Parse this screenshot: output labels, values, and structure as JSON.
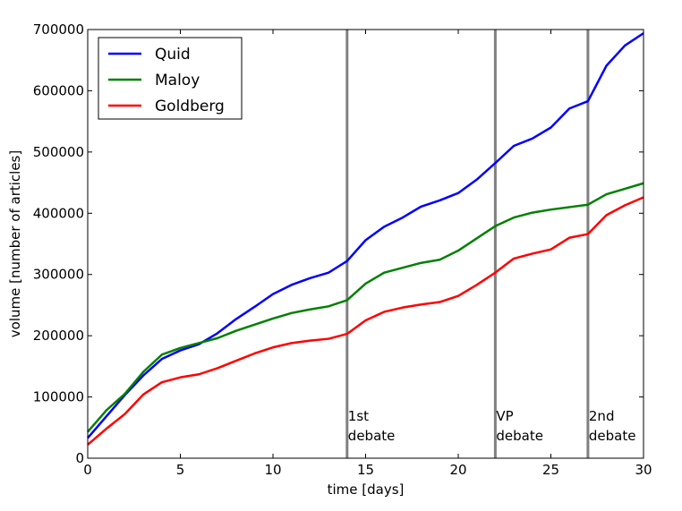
{
  "chart_data": {
    "type": "line",
    "title": "",
    "xlabel": "time [days]",
    "ylabel": "volume [number of articles]",
    "xlim": [
      0,
      30
    ],
    "ylim": [
      0,
      700000
    ],
    "xticks": [
      0,
      5,
      10,
      15,
      20,
      25,
      30
    ],
    "yticks": [
      0,
      100000,
      200000,
      300000,
      400000,
      500000,
      600000,
      700000
    ],
    "grid": false,
    "legend_position": "top-left",
    "x": [
      0,
      1,
      2,
      3,
      4,
      5,
      6,
      7,
      8,
      9,
      10,
      11,
      12,
      13,
      14,
      15,
      16,
      17,
      18,
      19,
      20,
      21,
      22,
      23,
      24,
      25,
      26,
      27,
      28,
      29,
      30
    ],
    "series": [
      {
        "name": "Quid",
        "color": "#0000ff",
        "values": [
          33000,
          68000,
          103000,
          135000,
          162000,
          176000,
          186000,
          204000,
          227000,
          247000,
          268000,
          283000,
          294000,
          303000,
          322000,
          356000,
          378000,
          393000,
          411000,
          421000,
          433000,
          455000,
          482000,
          510000,
          522000,
          540000,
          571000,
          583000,
          641000,
          674000,
          694000
        ]
      },
      {
        "name": "Maloy",
        "color": "#008000",
        "values": [
          43000,
          78000,
          105000,
          141000,
          169000,
          180000,
          188000,
          196000,
          208000,
          218000,
          228000,
          237000,
          243000,
          248000,
          258000,
          285000,
          303000,
          311000,
          319000,
          324000,
          339000,
          359000,
          379000,
          393000,
          401000,
          406000,
          410000,
          414000,
          431000,
          440000,
          449000
        ]
      },
      {
        "name": "Goldberg",
        "color": "#ff0000",
        "values": [
          22000,
          48000,
          72000,
          104000,
          124000,
          132000,
          137000,
          147000,
          159000,
          171000,
          181000,
          188000,
          192000,
          195000,
          203000,
          225000,
          239000,
          246000,
          251000,
          255000,
          265000,
          283000,
          303000,
          326000,
          334000,
          341000,
          360000,
          366000,
          397000,
          413000,
          426000
        ]
      }
    ],
    "vlines": [
      {
        "x": 14,
        "label_line1": "1st",
        "label_line2": "debate",
        "color": "#808080"
      },
      {
        "x": 22,
        "label_line1": "VP",
        "label_line2": "debate",
        "color": "#808080"
      },
      {
        "x": 27,
        "label_line1": "2nd",
        "label_line2": "debate",
        "color": "#808080"
      }
    ]
  }
}
